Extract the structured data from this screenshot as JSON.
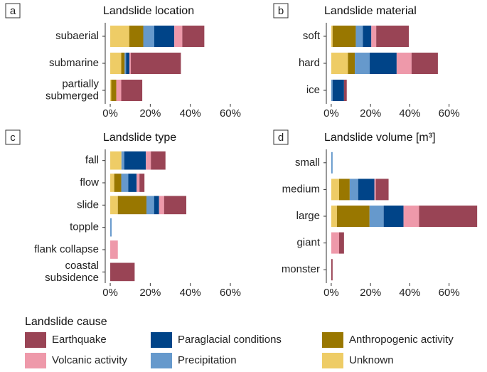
{
  "chart_data": [
    {
      "type": "bar",
      "orientation": "horizontal",
      "panel": "a",
      "title": "Landslide location",
      "legend_title": "Landslide cause",
      "categories": [
        "subaerial",
        "submarine",
        "partially\nsubmerged"
      ],
      "xlim": [
        -2.5,
        73.5
      ],
      "xticks": [
        {
          "value": 0,
          "label": "0%"
        },
        {
          "value": 20,
          "label": "20%"
        },
        {
          "value": 40,
          "label": "40%"
        },
        {
          "value": 60,
          "label": "60%"
        }
      ],
      "series": [
        {
          "name": "Unknown",
          "color": "#eecc66",
          "values": [
            9.5,
            5.5,
            0.5
          ]
        },
        {
          "name": "Anthropogenic activity",
          "color": "#997700",
          "values": [
            7,
            1.7,
            2.5
          ]
        },
        {
          "name": "Precipitation",
          "color": "#6699cc",
          "values": [
            5.5,
            0.7,
            0
          ]
        },
        {
          "name": "Paraglacial conditions",
          "color": "#004488",
          "values": [
            10,
            1.7,
            0
          ]
        },
        {
          "name": "Volcanic activity",
          "color": "#ee99aa",
          "values": [
            4,
            0.7,
            2.5
          ]
        },
        {
          "name": "Earthquake",
          "color": "#994455",
          "values": [
            11,
            25,
            10.5
          ]
        }
      ]
    },
    {
      "type": "bar",
      "orientation": "horizontal",
      "panel": "b",
      "title": "Landslide material",
      "categories": [
        "soft",
        "hard",
        "ice"
      ],
      "xlim": [
        -2.5,
        77.5
      ],
      "xticks": [
        {
          "value": 0,
          "label": "0%"
        },
        {
          "value": 20,
          "label": "20%"
        },
        {
          "value": 40,
          "label": "40%"
        },
        {
          "value": 60,
          "label": "60%"
        }
      ],
      "series": [
        {
          "name": "Unknown",
          "color": "#eecc66",
          "values": [
            0.7,
            8.5,
            0
          ]
        },
        {
          "name": "Anthropogenic activity",
          "color": "#997700",
          "values": [
            11.8,
            3.5,
            0
          ]
        },
        {
          "name": "Precipitation",
          "color": "#6699cc",
          "values": [
            3.6,
            7.6,
            0.7
          ]
        },
        {
          "name": "Paraglacial conditions",
          "color": "#004488",
          "values": [
            4.3,
            13.7,
            5.8
          ]
        },
        {
          "name": "Volcanic activity",
          "color": "#ee99aa",
          "values": [
            2.5,
            7.6,
            0
          ]
        },
        {
          "name": "Earthquake",
          "color": "#994455",
          "values": [
            16.6,
            13.4,
            1.4
          ]
        }
      ]
    },
    {
      "type": "bar",
      "orientation": "horizontal",
      "panel": "c",
      "title": "Landslide type",
      "categories": [
        "fall",
        "flow",
        "slide",
        "topple",
        "flank collapse",
        "coastal\nsubsidence"
      ],
      "xlim": [
        -2.5,
        73.5
      ],
      "xticks": [
        {
          "value": 0,
          "label": "0%"
        },
        {
          "value": 20,
          "label": "20%"
        },
        {
          "value": 40,
          "label": "40%"
        },
        {
          "value": 60,
          "label": "60%"
        }
      ],
      "series": [
        {
          "name": "Unknown",
          "color": "#eecc66",
          "values": [
            5.6,
            2,
            3.8,
            0,
            0,
            0
          ]
        },
        {
          "name": "Anthropogenic activity",
          "color": "#997700",
          "values": [
            0,
            3.5,
            14.3,
            0,
            0,
            0
          ]
        },
        {
          "name": "Precipitation",
          "color": "#6699cc",
          "values": [
            1.4,
            3.5,
            3.8,
            0.7,
            0,
            0
          ]
        },
        {
          "name": "Paraglacial conditions",
          "color": "#004488",
          "values": [
            10.8,
            4.2,
            2.5,
            0,
            0,
            0
          ]
        },
        {
          "name": "Volcanic activity",
          "color": "#ee99aa",
          "values": [
            2.5,
            1.4,
            2.5,
            0,
            3.8,
            0
          ]
        },
        {
          "name": "Earthquake",
          "color": "#994455",
          "values": [
            7.3,
            2.5,
            11.1,
            0,
            0,
            12.2
          ]
        }
      ]
    },
    {
      "type": "bar",
      "orientation": "horizontal",
      "panel": "d",
      "title": "Landslide volume [m³]",
      "categories": [
        "small",
        "medium",
        "large",
        "giant",
        "monster"
      ],
      "xlim": [
        -2.5,
        77.5
      ],
      "xticks": [
        {
          "value": 0,
          "label": "0%"
        },
        {
          "value": 20,
          "label": "20%"
        },
        {
          "value": 40,
          "label": "40%"
        },
        {
          "value": 60,
          "label": "60%"
        }
      ],
      "series": [
        {
          "name": "Unknown",
          "color": "#eecc66",
          "values": [
            0,
            4,
            2.9,
            0,
            0
          ]
        },
        {
          "name": "Anthropogenic activity",
          "color": "#997700",
          "values": [
            0,
            5.4,
            16.6,
            0,
            0
          ]
        },
        {
          "name": "Precipitation",
          "color": "#6699cc",
          "values": [
            0.7,
            4.3,
            7.2,
            0,
            0
          ]
        },
        {
          "name": "Paraglacial conditions",
          "color": "#004488",
          "values": [
            0,
            8.3,
            10.1,
            0,
            0
          ]
        },
        {
          "name": "Volcanic activity",
          "color": "#ee99aa",
          "values": [
            0,
            0.7,
            7.9,
            4,
            0
          ]
        },
        {
          "name": "Earthquake",
          "color": "#994455",
          "values": [
            0,
            6.5,
            29.6,
            2.5,
            0.7
          ]
        }
      ]
    }
  ]
}
